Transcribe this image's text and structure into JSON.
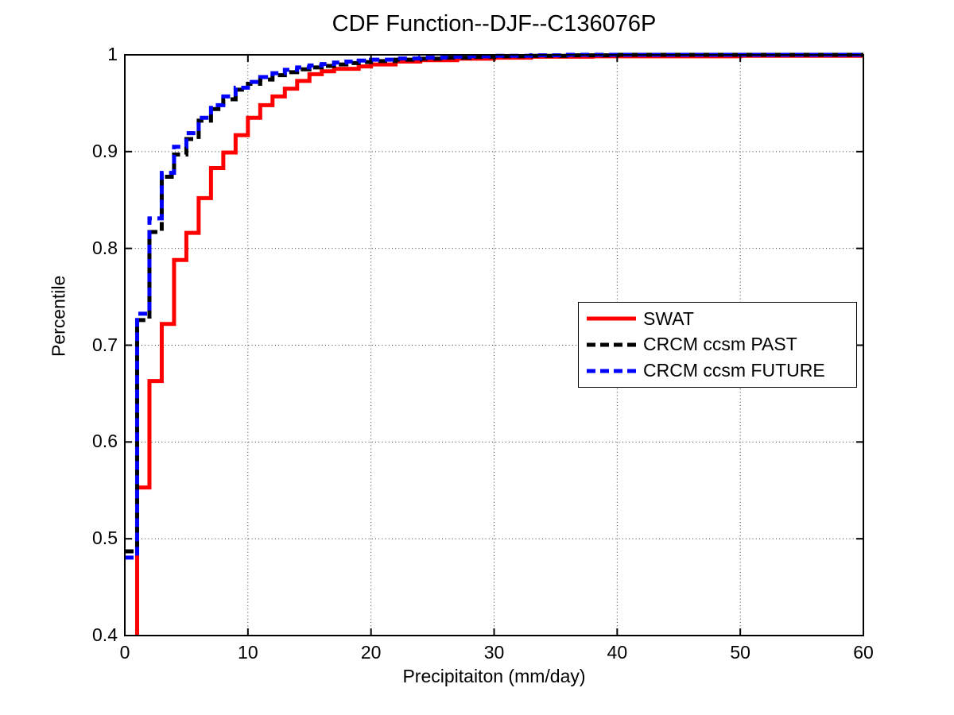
{
  "figure": {
    "background": "#ffffff",
    "axis_color": "#000000",
    "grid_style": "dotted"
  },
  "chart_data": {
    "type": "line",
    "subtype": "step-cdf",
    "title": "CDF Function--DJF--C136076P",
    "xlabel": "Precipitaiton (mm/day)",
    "ylabel": "Percentile",
    "xlim": [
      0,
      60
    ],
    "ylim": [
      0.4,
      1
    ],
    "grid": "on",
    "legend_position": "middle-right",
    "x_tick_labels": [
      "0",
      "10",
      "20",
      "30",
      "40",
      "50",
      "60"
    ],
    "x_tick_values": [
      0,
      10,
      20,
      30,
      40,
      50,
      60
    ],
    "y_tick_labels": [
      "0.4",
      "0.5",
      "0.6",
      "0.7",
      "0.8",
      "0.9",
      "1"
    ],
    "y_tick_values": [
      0.4,
      0.5,
      0.6,
      0.7,
      0.8,
      0.9,
      1
    ],
    "series": [
      {
        "name": "SWAT",
        "color": "#ff0000",
        "dash": "solid",
        "start": [
          1,
          0.4
        ],
        "steps": [
          [
            1,
            0.553
          ],
          [
            2,
            0.663
          ],
          [
            3,
            0.722
          ],
          [
            4,
            0.788
          ],
          [
            5,
            0.816
          ],
          [
            6,
            0.852
          ],
          [
            7,
            0.883
          ],
          [
            8,
            0.899
          ],
          [
            9,
            0.917
          ],
          [
            10,
            0.935
          ],
          [
            11,
            0.948
          ],
          [
            12,
            0.957
          ],
          [
            13,
            0.965
          ],
          [
            14,
            0.973
          ],
          [
            15,
            0.98
          ],
          [
            16,
            0.983
          ],
          [
            17,
            0.9855
          ],
          [
            19,
            0.988
          ],
          [
            20,
            0.99
          ],
          [
            22,
            0.993
          ],
          [
            24,
            0.9945
          ],
          [
            27,
            0.996
          ],
          [
            30,
            0.997
          ],
          [
            33,
            0.998
          ],
          [
            38,
            0.9985
          ],
          [
            50,
            0.999
          ]
        ]
      },
      {
        "name": "CRCM ccsm PAST",
        "color": "#000000",
        "dash": "dashed",
        "start": [
          0,
          0.487
        ],
        "steps": [
          [
            1,
            0.726
          ],
          [
            2,
            0.817
          ],
          [
            3,
            0.874
          ],
          [
            4,
            0.897
          ],
          [
            5,
            0.913
          ],
          [
            6,
            0.932
          ],
          [
            7,
            0.944
          ],
          [
            8,
            0.954
          ],
          [
            9,
            0.964
          ],
          [
            10,
            0.97
          ],
          [
            11,
            0.9745
          ],
          [
            12,
            0.979
          ],
          [
            13,
            0.982
          ],
          [
            14,
            0.985
          ],
          [
            15,
            0.987
          ],
          [
            16,
            0.9885
          ],
          [
            17,
            0.99
          ],
          [
            18,
            0.9915
          ],
          [
            19,
            0.9925
          ],
          [
            20,
            0.9935
          ],
          [
            22,
            0.995
          ],
          [
            24,
            0.996
          ],
          [
            26,
            0.997
          ],
          [
            28,
            0.9978
          ],
          [
            30,
            0.9985
          ],
          [
            33,
            0.999
          ],
          [
            36,
            0.9995
          ],
          [
            40,
            1.0
          ]
        ]
      },
      {
        "name": "CRCM ccsm FUTURE",
        "color": "#0000ff",
        "dash": "dashed",
        "start": [
          0,
          0.4805
        ],
        "steps": [
          [
            1,
            0.7325
          ],
          [
            2,
            0.831
          ],
          [
            3,
            0.878
          ],
          [
            4,
            0.905
          ],
          [
            5,
            0.919
          ],
          [
            6,
            0.935
          ],
          [
            7,
            0.948
          ],
          [
            8,
            0.957
          ],
          [
            9,
            0.966
          ],
          [
            10,
            0.972
          ],
          [
            11,
            0.977
          ],
          [
            12,
            0.981
          ],
          [
            13,
            0.9845
          ],
          [
            14,
            0.987
          ],
          [
            15,
            0.989
          ],
          [
            16,
            0.9905
          ],
          [
            17,
            0.992
          ],
          [
            18,
            0.993
          ],
          [
            19,
            0.994
          ],
          [
            20,
            0.995
          ],
          [
            22,
            0.9962
          ],
          [
            24,
            0.997
          ],
          [
            26,
            0.998
          ],
          [
            28,
            0.9985
          ],
          [
            30,
            0.999
          ],
          [
            33,
            0.9995
          ],
          [
            36,
            1.0
          ]
        ]
      }
    ]
  }
}
